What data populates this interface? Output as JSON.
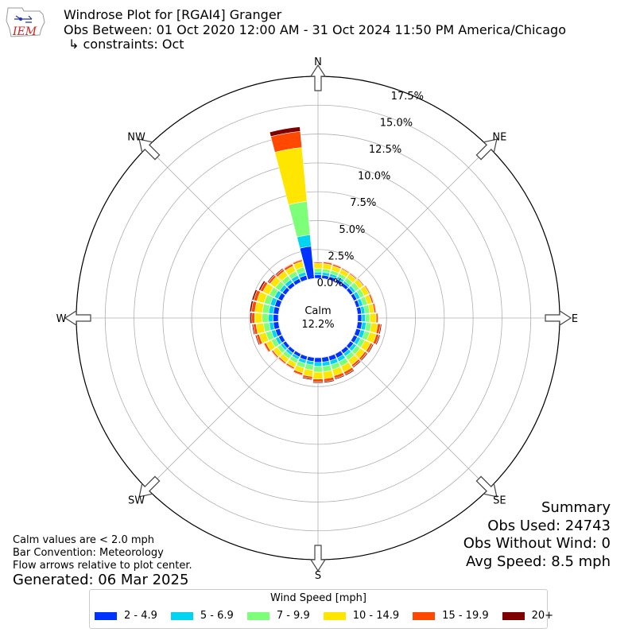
{
  "header": {
    "title": "Windrose Plot for [RGAI4] Granger",
    "subtitle": "Obs Between: 01 Oct 2020 12:00 AM - 31 Oct 2024 11:50 PM America/Chicago",
    "constraints": "↳ constraints: Oct",
    "logo_text": "IEM"
  },
  "notes": {
    "calm": "Calm values are < 2.0 mph",
    "convention": "Bar Convention: Meteorology",
    "flow": "Flow arrows relative to plot center.",
    "generated": "Generated: 06 Mar 2025"
  },
  "summary": {
    "title": "Summary",
    "obs_used": "Obs Used: 24743",
    "obs_without_wind": "Obs Without Wind: 0",
    "avg_speed": "Avg Speed: 8.5 mph"
  },
  "legend": {
    "title": "Wind Speed [mph]",
    "items": [
      {
        "label": "2 - 4.9",
        "color": "#0033ff"
      },
      {
        "label": "5 - 6.9",
        "color": "#00d4f0"
      },
      {
        "label": "7 - 9.9",
        "color": "#7dff7a"
      },
      {
        "label": "10 - 14.9",
        "color": "#ffe600"
      },
      {
        "label": "15 - 19.9",
        "color": "#ff4800"
      },
      {
        "label": "20+",
        "color": "#7f0000"
      }
    ]
  },
  "chart_data": {
    "type": "windrose",
    "calm_label": "Calm",
    "calm_percent": "12.2%",
    "radial_ticks": [
      "0.0%",
      "2.5%",
      "5.0%",
      "7.5%",
      "10.0%",
      "12.5%",
      "15.0%",
      "17.5%"
    ],
    "radial_max": 17.5,
    "directions": [
      "N",
      "NE",
      "E",
      "SE",
      "S",
      "SW",
      "W",
      "NW"
    ],
    "direction_angles": [
      0,
      45,
      90,
      135,
      180,
      225,
      270,
      315
    ],
    "bin_colors": [
      "#0033ff",
      "#00d4f0",
      "#7dff7a",
      "#ffe600",
      "#ff4800",
      "#7f0000"
    ],
    "sectors": [
      {
        "dir": 0,
        "values": [
          0.3,
          0.25,
          0.3,
          0.45,
          0.1,
          0.05
        ]
      },
      {
        "dir": 10,
        "values": [
          0.3,
          0.25,
          0.3,
          0.45,
          0.15,
          0.05
        ]
      },
      {
        "dir": 20,
        "values": [
          0.3,
          0.25,
          0.3,
          0.4,
          0.15,
          0.05
        ]
      },
      {
        "dir": 30,
        "values": [
          0.3,
          0.25,
          0.3,
          0.4,
          0.1,
          0.05
        ]
      },
      {
        "dir": 40,
        "values": [
          0.3,
          0.2,
          0.35,
          0.4,
          0.1,
          0.05
        ]
      },
      {
        "dir": 50,
        "values": [
          0.3,
          0.25,
          0.4,
          0.4,
          0.1,
          0.05
        ]
      },
      {
        "dir": 60,
        "values": [
          0.3,
          0.3,
          0.4,
          0.45,
          0.1,
          0.05
        ]
      },
      {
        "dir": 70,
        "values": [
          0.3,
          0.3,
          0.4,
          0.4,
          0.15,
          0.05
        ]
      },
      {
        "dir": 80,
        "values": [
          0.35,
          0.3,
          0.4,
          0.4,
          0.15,
          0.05
        ]
      },
      {
        "dir": 90,
        "values": [
          0.35,
          0.3,
          0.4,
          0.55,
          0.15,
          0.05
        ]
      },
      {
        "dir": 100,
        "values": [
          0.4,
          0.35,
          0.45,
          0.55,
          0.25,
          0.1
        ]
      },
      {
        "dir": 110,
        "values": [
          0.4,
          0.35,
          0.45,
          0.6,
          0.25,
          0.1
        ]
      },
      {
        "dir": 120,
        "values": [
          0.35,
          0.3,
          0.4,
          0.55,
          0.2,
          0.1
        ]
      },
      {
        "dir": 130,
        "values": [
          0.35,
          0.3,
          0.4,
          0.5,
          0.2,
          0.1
        ]
      },
      {
        "dir": 140,
        "values": [
          0.35,
          0.3,
          0.4,
          0.5,
          0.2,
          0.1
        ]
      },
      {
        "dir": 150,
        "values": [
          0.4,
          0.35,
          0.45,
          0.55,
          0.25,
          0.1
        ]
      },
      {
        "dir": 160,
        "values": [
          0.4,
          0.35,
          0.45,
          0.55,
          0.25,
          0.1
        ]
      },
      {
        "dir": 170,
        "values": [
          0.4,
          0.35,
          0.5,
          0.6,
          0.25,
          0.1
        ]
      },
      {
        "dir": 180,
        "values": [
          0.4,
          0.35,
          0.5,
          0.6,
          0.25,
          0.1
        ]
      },
      {
        "dir": 190,
        "values": [
          0.35,
          0.3,
          0.45,
          0.55,
          0.2,
          0.1
        ]
      },
      {
        "dir": 200,
        "values": [
          0.35,
          0.3,
          0.4,
          0.45,
          0.2,
          0.05
        ]
      },
      {
        "dir": 210,
        "values": [
          0.3,
          0.25,
          0.35,
          0.4,
          0.15,
          0.05
        ]
      },
      {
        "dir": 220,
        "values": [
          0.3,
          0.25,
          0.35,
          0.4,
          0.15,
          0.05
        ]
      },
      {
        "dir": 230,
        "values": [
          0.3,
          0.25,
          0.35,
          0.45,
          0.15,
          0.05
        ]
      },
      {
        "dir": 240,
        "values": [
          0.35,
          0.3,
          0.4,
          0.5,
          0.2,
          0.05
        ]
      },
      {
        "dir": 250,
        "values": [
          0.4,
          0.35,
          0.5,
          0.6,
          0.25,
          0.1
        ]
      },
      {
        "dir": 260,
        "values": [
          0.45,
          0.35,
          0.5,
          0.65,
          0.25,
          0.1
        ]
      },
      {
        "dir": 270,
        "values": [
          0.45,
          0.4,
          0.55,
          0.65,
          0.25,
          0.15
        ]
      },
      {
        "dir": 280,
        "values": [
          0.45,
          0.4,
          0.55,
          0.65,
          0.3,
          0.15
        ]
      },
      {
        "dir": 290,
        "values": [
          0.45,
          0.4,
          0.55,
          0.65,
          0.3,
          0.15
        ]
      },
      {
        "dir": 300,
        "values": [
          0.4,
          0.35,
          0.5,
          0.6,
          0.25,
          0.15
        ]
      },
      {
        "dir": 310,
        "values": [
          0.35,
          0.3,
          0.45,
          0.55,
          0.2,
          0.1
        ]
      },
      {
        "dir": 320,
        "values": [
          0.35,
          0.3,
          0.4,
          0.5,
          0.2,
          0.1
        ]
      },
      {
        "dir": 330,
        "values": [
          0.35,
          0.3,
          0.4,
          0.5,
          0.2,
          0.05
        ]
      },
      {
        "dir": 340,
        "values": [
          0.4,
          0.3,
          0.45,
          0.5,
          0.15,
          0.05
        ]
      },
      {
        "dir": 350,
        "values": [
          2.8,
          1.0,
          2.9,
          4.7,
          1.4,
          0.4
        ]
      }
    ]
  }
}
